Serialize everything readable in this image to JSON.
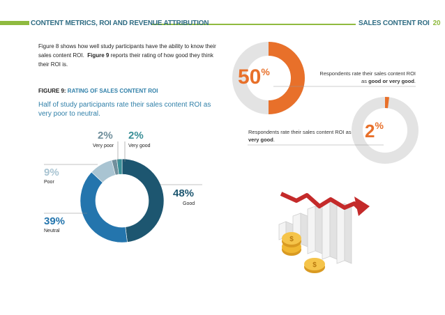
{
  "header": {
    "left_title": "CONTENT METRICS, ROI AND REVENUE ATTRIBUTION",
    "right_title": "SALES CONTENT ROI",
    "page_number": "20",
    "accent_color": "#8fba3f"
  },
  "intro": {
    "part1": "Figure 8 shows how well study participants have the ability to know their sales content ROI.",
    "bold": "Figure 9",
    "part2": "reports their rating of how good they think their ROI is."
  },
  "figure": {
    "label": "FIGURE 9:",
    "title": "RATING OF SALES CONTENT ROI",
    "subtitle": "Half of study participants rate their sales content ROI as very poor to neutral."
  },
  "chart_data": {
    "type": "pie",
    "style": "donut",
    "categories": [
      "Good",
      "Neutral",
      "Poor",
      "Very poor",
      "Very good"
    ],
    "values": [
      48,
      39,
      9,
      2,
      2
    ],
    "value_labels": [
      "48%",
      "39%",
      "9%",
      "2%",
      "2%"
    ],
    "colors": [
      "#1d5670",
      "#2475ad",
      "#a9c4d2",
      "#708f9c",
      "#3a8f97"
    ]
  },
  "callouts": [
    {
      "value": 50,
      "value_text": "50",
      "suffix": "%",
      "text_pre": "Respondents rate their sales content ROI as",
      "text_bold": "good or very good",
      "text_post": ".",
      "color": "#e8702a"
    },
    {
      "value": 2,
      "value_text": "2",
      "suffix": "%",
      "text_pre": "Respondents rate their sales content ROI as",
      "text_bold": "very good",
      "text_post": ".",
      "color": "#e8702a"
    }
  ],
  "illustration": {
    "icon": "declining-bar-chart-with-coins-icon"
  }
}
